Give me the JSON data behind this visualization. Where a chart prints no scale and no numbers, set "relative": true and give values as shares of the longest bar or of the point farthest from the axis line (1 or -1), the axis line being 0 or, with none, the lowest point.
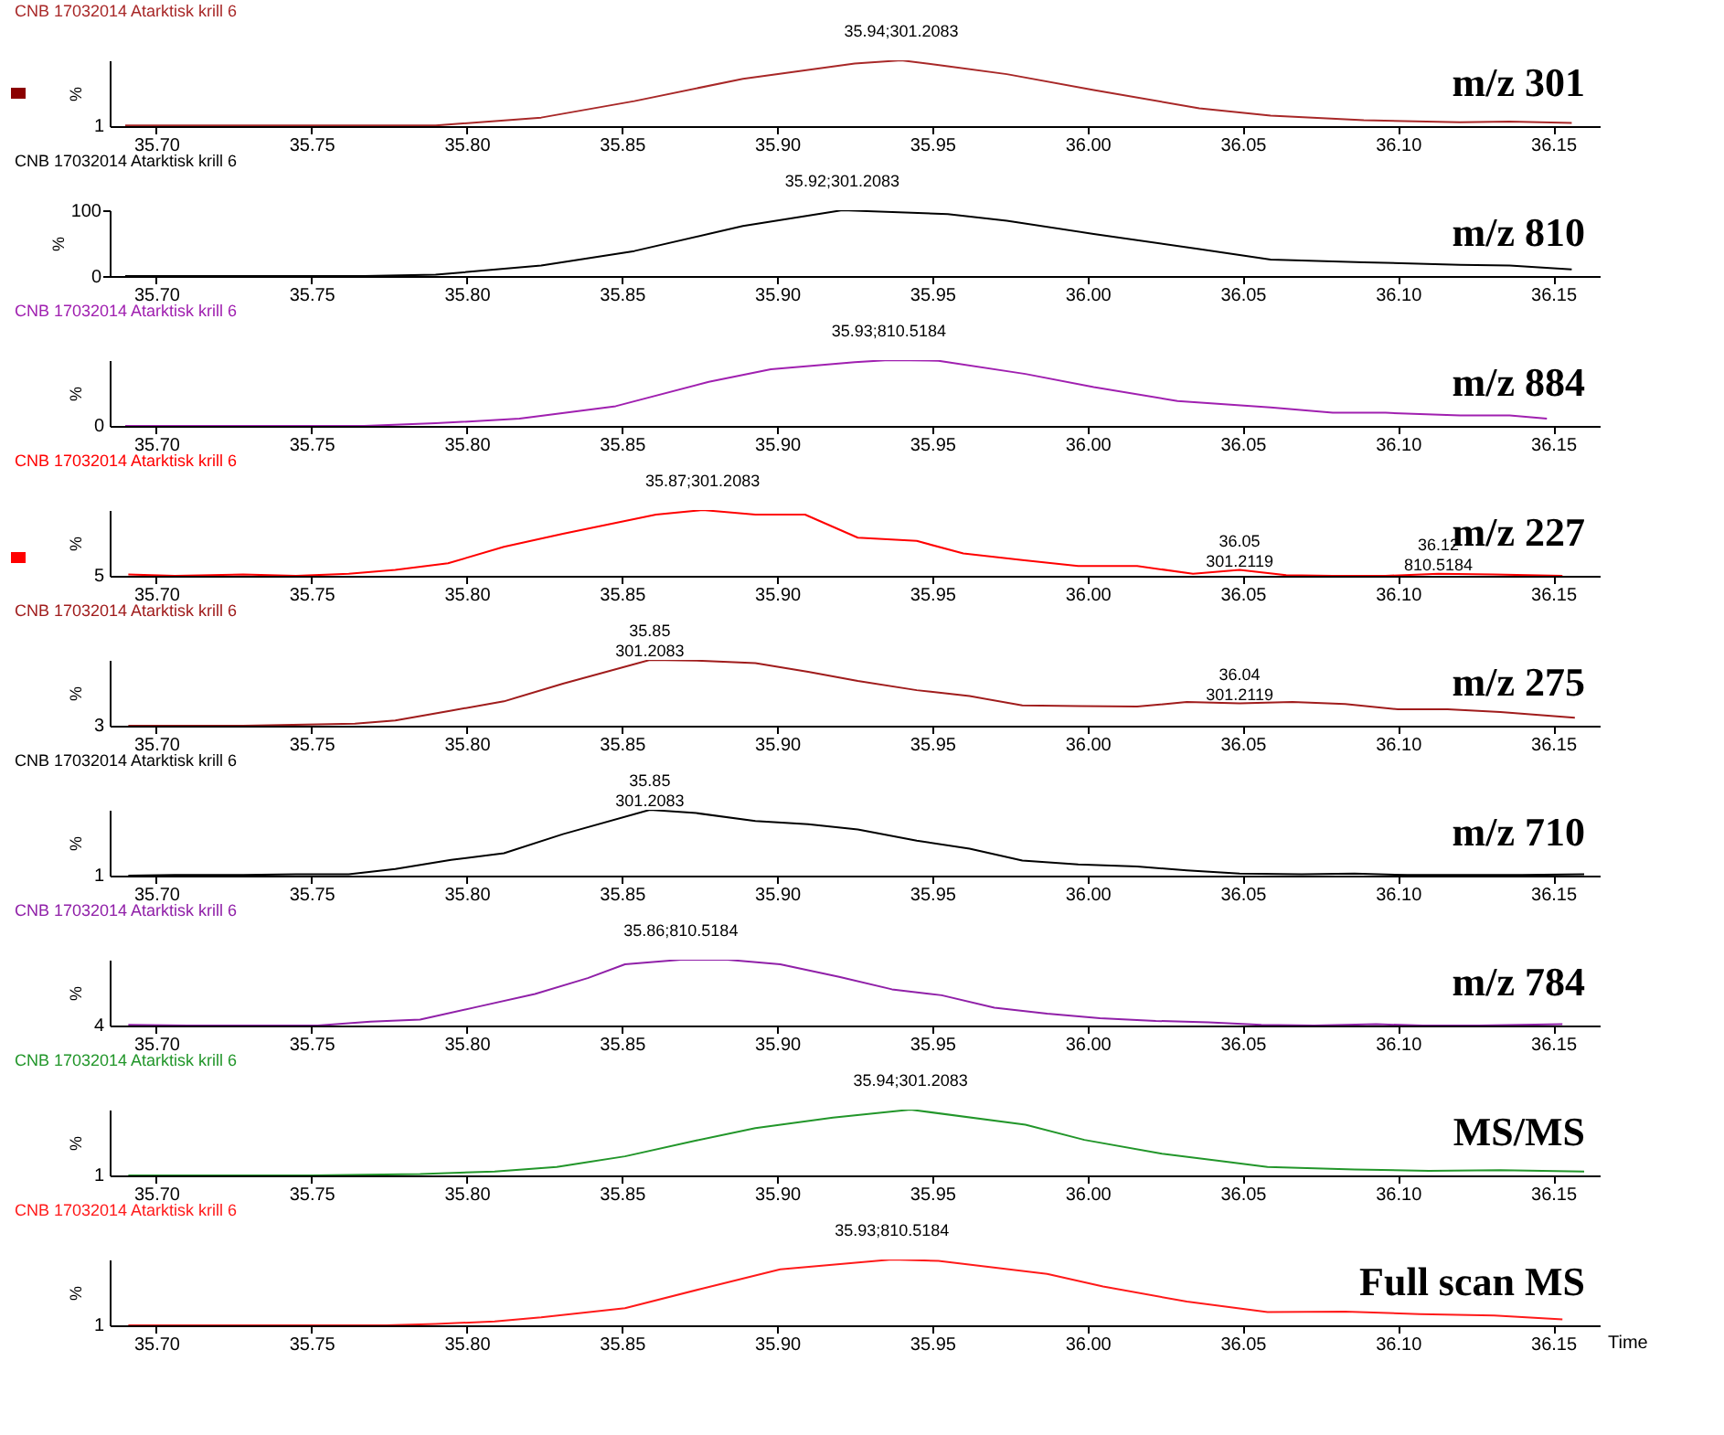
{
  "chart_data": [
    {
      "type": "line",
      "title": "CNB 17032014 Atarktisk krill 6",
      "ylabel": "%",
      "relative": true,
      "xlim": [
        35.685,
        36.165
      ],
      "xticks": [
        {
          "value": 35.7,
          "label": "35.70"
        },
        {
          "value": 35.75,
          "label": "35.75"
        },
        {
          "value": 35.8,
          "label": "35.80"
        },
        {
          "value": 35.85,
          "label": "35.85"
        },
        {
          "value": 35.9,
          "label": "35.90"
        },
        {
          "value": 35.95,
          "label": "35.95"
        },
        {
          "value": 36.0,
          "label": "36.00"
        },
        {
          "value": 36.05,
          "label": "36.05"
        },
        {
          "value": 36.1,
          "label": "36.10"
        },
        {
          "value": 36.15,
          "label": "36.15"
        }
      ],
      "x": [
        35.69,
        35.79,
        35.824,
        35.854,
        35.889,
        35.925,
        35.94,
        35.955,
        35.974,
        36.002,
        36.036,
        36.059,
        36.089,
        36.12,
        36.136,
        36.156
      ],
      "series": [
        {
          "color": "#a82828",
          "values": [
            0.01,
            0.01,
            0.13,
            0.38,
            0.72,
            0.95,
            1,
            0.91,
            0.79,
            0.55,
            0.27,
            0.16,
            0.09,
            0.06,
            0.07,
            0.05
          ]
        }
      ],
      "annotations": [
        {
          "text": "35.94;301.2083",
          "x": 35.94,
          "y": 1
        },
        "1",
        "m/z 301"
      ]
    },
    {
      "type": "line",
      "title": "CNB 17032014 Atarktisk krill 6",
      "ylabel": "%",
      "xlim": [
        35.685,
        36.165
      ],
      "xticks": [
        {
          "value": 35.7,
          "label": "35.70"
        },
        {
          "value": 35.75,
          "label": "35.75"
        },
        {
          "value": 35.8,
          "label": "35.80"
        },
        {
          "value": 35.85,
          "label": "35.85"
        },
        {
          "value": 35.9,
          "label": "35.90"
        },
        {
          "value": 35.95,
          "label": "35.95"
        },
        {
          "value": 36.0,
          "label": "36.00"
        },
        {
          "value": 36.05,
          "label": "36.05"
        },
        {
          "value": 36.1,
          "label": "36.10"
        },
        {
          "value": 36.15,
          "label": "36.15"
        }
      ],
      "ylim": [
        0,
        100
      ],
      "yticks": [
        0,
        100
      ],
      "x": [
        35.69,
        35.767,
        35.79,
        35.824,
        35.854,
        35.889,
        35.921,
        35.955,
        35.974,
        36.002,
        36.036,
        36.059,
        36.089,
        36.12,
        36.136,
        36.156
      ],
      "series": [
        {
          "color": "#000000",
          "values": [
            0,
            0,
            2,
            16,
            38,
            76,
            100,
            94,
            84,
            64,
            41,
            25,
            21,
            17,
            16,
            10
          ]
        }
      ],
      "annotations": [
        {
          "text": "35.92;301.2083",
          "x": 35.921,
          "y": 100
        },
        "m/z 810"
      ]
    },
    {
      "type": "line",
      "title": "CNB 17032014 Atarktisk krill 6",
      "ylabel": "%",
      "relative": true,
      "xlim": [
        35.685,
        36.165
      ],
      "xticks": [
        {
          "value": 35.7,
          "label": "35.70"
        },
        {
          "value": 35.75,
          "label": "35.75"
        },
        {
          "value": 35.8,
          "label": "35.80"
        },
        {
          "value": 35.85,
          "label": "35.85"
        },
        {
          "value": 35.9,
          "label": "35.90"
        },
        {
          "value": 35.95,
          "label": "35.95"
        },
        {
          "value": 36.0,
          "label": "36.00"
        },
        {
          "value": 36.05,
          "label": "36.05"
        },
        {
          "value": 36.1,
          "label": "36.10"
        },
        {
          "value": 36.15,
          "label": "36.15"
        }
      ],
      "x": [
        35.69,
        35.767,
        35.79,
        35.817,
        35.848,
        35.878,
        35.898,
        35.925,
        35.936,
        35.952,
        35.98,
        36.002,
        36.029,
        36.059,
        36.079,
        36.096,
        36.12,
        36.136,
        36.148
      ],
      "series": [
        {
          "color": "#a020b0",
          "values": [
            0,
            0,
            0.04,
            0.11,
            0.3,
            0.67,
            0.86,
            0.97,
            1,
            0.99,
            0.79,
            0.59,
            0.38,
            0.28,
            0.2,
            0.2,
            0.16,
            0.16,
            0.11
          ]
        }
      ],
      "annotations": [
        {
          "text": "35.93;810.5184",
          "x": 35.936,
          "y": 1
        },
        "0",
        "m/z 884"
      ]
    },
    {
      "type": "line",
      "title": "CNB 17032014 Atarktisk krill 6",
      "ylabel": "%",
      "relative": true,
      "xlim": [
        35.685,
        36.165
      ],
      "xticks": [
        {
          "value": 35.7,
          "label": "35.70"
        },
        {
          "value": 35.75,
          "label": "35.75"
        },
        {
          "value": 35.8,
          "label": "35.80"
        },
        {
          "value": 35.85,
          "label": "35.85"
        },
        {
          "value": 35.9,
          "label": "35.90"
        },
        {
          "value": 35.95,
          "label": "35.95"
        },
        {
          "value": 36.0,
          "label": "36.00"
        },
        {
          "value": 36.05,
          "label": "36.05"
        },
        {
          "value": 36.1,
          "label": "36.10"
        },
        {
          "value": 36.15,
          "label": "36.15"
        }
      ],
      "x": [
        35.691,
        35.706,
        35.728,
        35.745,
        35.762,
        35.777,
        35.794,
        35.812,
        35.831,
        35.861,
        35.876,
        35.893,
        35.909,
        35.926,
        35.945,
        35.96,
        35.979,
        35.997,
        36.016,
        36.034,
        36.049,
        36.064,
        36.079,
        36.096,
        36.113,
        36.131,
        36.153
      ],
      "series": [
        {
          "color": "#ff0000",
          "values": [
            0.02,
            0,
            0.02,
            0,
            0.03,
            0.09,
            0.19,
            0.44,
            0.64,
            0.93,
            1,
            0.93,
            0.93,
            0.58,
            0.53,
            0.34,
            0.24,
            0.15,
            0.15,
            0.03,
            0.09,
            0.01,
            0,
            0,
            0.03,
            0.02,
            0
          ]
        }
      ],
      "annotations": [
        {
          "text": "35.87;301.2083",
          "x": 35.876,
          "y": 1
        },
        {
          "text": "36.05\n301.2119",
          "x": 36.049,
          "y": 0.09
        },
        {
          "text": "36.12\n810.5184",
          "x": 36.113,
          "y": 0.03
        },
        "5",
        "m/z 227"
      ]
    },
    {
      "type": "line",
      "title": "CNB 17032014 Atarktisk krill 6",
      "ylabel": "%",
      "relative": true,
      "xlim": [
        35.685,
        36.165
      ],
      "xticks": [
        {
          "value": 35.7,
          "label": "35.70"
        },
        {
          "value": 35.75,
          "label": "35.75"
        },
        {
          "value": 35.8,
          "label": "35.80"
        },
        {
          "value": 35.85,
          "label": "35.85"
        },
        {
          "value": 35.9,
          "label": "35.90"
        },
        {
          "value": 35.95,
          "label": "35.95"
        },
        {
          "value": 36.0,
          "label": "36.00"
        },
        {
          "value": 36.05,
          "label": "36.05"
        },
        {
          "value": 36.1,
          "label": "36.10"
        },
        {
          "value": 36.15,
          "label": "36.15"
        }
      ],
      "x": [
        35.691,
        35.728,
        35.764,
        35.777,
        35.795,
        35.812,
        35.831,
        35.859,
        35.874,
        35.893,
        35.91,
        35.926,
        35.945,
        35.962,
        35.979,
        35.997,
        36.016,
        36.032,
        36.049,
        36.066,
        36.083,
        36.1,
        36.116,
        36.133,
        36.157
      ],
      "series": [
        {
          "color": "#a01c1c",
          "values": [
            0,
            0,
            0.03,
            0.08,
            0.23,
            0.37,
            0.64,
            1,
            0.99,
            0.95,
            0.82,
            0.68,
            0.54,
            0.45,
            0.31,
            0.3,
            0.29,
            0.36,
            0.34,
            0.36,
            0.33,
            0.25,
            0.25,
            0.21,
            0.12
          ]
        }
      ],
      "annotations": [
        {
          "text": "35.85\n301.2083",
          "x": 35.859,
          "y": 1
        },
        {
          "text": "36.04\n301.2119",
          "x": 36.049,
          "y": 0.34
        },
        "3",
        "m/z 275"
      ]
    },
    {
      "type": "line",
      "title": "CNB 17032014 Atarktisk krill 6",
      "ylabel": "%",
      "relative": true,
      "xlim": [
        35.685,
        36.165
      ],
      "xticks": [
        {
          "value": 35.7,
          "label": "35.70"
        },
        {
          "value": 35.75,
          "label": "35.75"
        },
        {
          "value": 35.8,
          "label": "35.80"
        },
        {
          "value": 35.85,
          "label": "35.85"
        },
        {
          "value": 35.9,
          "label": "35.90"
        },
        {
          "value": 35.95,
          "label": "35.95"
        },
        {
          "value": 36.0,
          "label": "36.00"
        },
        {
          "value": 36.05,
          "label": "36.05"
        },
        {
          "value": 36.1,
          "label": "36.10"
        },
        {
          "value": 36.15,
          "label": "36.15"
        }
      ],
      "x": [
        35.691,
        35.706,
        35.728,
        35.745,
        35.762,
        35.777,
        35.795,
        35.812,
        35.831,
        35.859,
        35.874,
        35.893,
        35.91,
        35.926,
        35.945,
        35.962,
        35.979,
        35.997,
        36.016,
        36.032,
        36.049,
        36.069,
        36.086,
        36.103,
        36.12,
        36.14,
        36.16
      ],
      "series": [
        {
          "color": "#000000",
          "values": [
            0,
            0.01,
            0.01,
            0.02,
            0.02,
            0.1,
            0.24,
            0.34,
            0.63,
            1,
            0.95,
            0.83,
            0.78,
            0.7,
            0.53,
            0.41,
            0.23,
            0.17,
            0.14,
            0.08,
            0.03,
            0.02,
            0.03,
            0.01,
            0.01,
            0.01,
            0.02
          ]
        }
      ],
      "annotations": [
        {
          "text": "35.85\n301.2083",
          "x": 35.859,
          "y": 1
        },
        "1",
        "m/z 710"
      ]
    },
    {
      "type": "line",
      "title": "CNB 17032014 Atarktisk krill 6",
      "ylabel": "%",
      "relative": true,
      "xlim": [
        35.685,
        36.165
      ],
      "xticks": [
        {
          "value": 35.7,
          "label": "35.70"
        },
        {
          "value": 35.75,
          "label": "35.75"
        },
        {
          "value": 35.8,
          "label": "35.80"
        },
        {
          "value": 35.85,
          "label": "35.85"
        },
        {
          "value": 35.9,
          "label": "35.90"
        },
        {
          "value": 35.95,
          "label": "35.95"
        },
        {
          "value": 36.0,
          "label": "36.00"
        },
        {
          "value": 36.05,
          "label": "36.05"
        },
        {
          "value": 36.1,
          "label": "36.10"
        },
        {
          "value": 36.15,
          "label": "36.15"
        }
      ],
      "x": [
        35.691,
        35.71,
        35.733,
        35.752,
        35.769,
        35.785,
        35.804,
        35.822,
        35.839,
        35.851,
        35.869,
        35.884,
        35.901,
        35.92,
        35.937,
        35.953,
        35.97,
        35.987,
        36.004,
        36.022,
        36.039,
        36.056,
        36.073,
        36.093,
        36.108,
        36.126,
        36.153
      ],
      "series": [
        {
          "color": "#9020a8",
          "values": [
            0.01,
            0,
            0,
            0,
            0.06,
            0.09,
            0.29,
            0.48,
            0.72,
            0.93,
            1,
            1,
            0.93,
            0.74,
            0.55,
            0.46,
            0.27,
            0.18,
            0.11,
            0.07,
            0.05,
            0.01,
            0,
            0.02,
            0,
            0,
            0.02
          ]
        }
      ],
      "annotations": [
        {
          "text": "35.86;810.5184",
          "x": 35.869,
          "y": 1
        },
        "4",
        "m/z 784"
      ]
    },
    {
      "type": "line",
      "title": "CNB 17032014 Atarktisk krill 6",
      "ylabel": "%",
      "relative": true,
      "xlim": [
        35.685,
        36.165
      ],
      "xticks": [
        {
          "value": 35.7,
          "label": "35.70"
        },
        {
          "value": 35.75,
          "label": "35.75"
        },
        {
          "value": 35.8,
          "label": "35.80"
        },
        {
          "value": 35.85,
          "label": "35.85"
        },
        {
          "value": 35.9,
          "label": "35.90"
        },
        {
          "value": 35.95,
          "label": "35.95"
        },
        {
          "value": 36.0,
          "label": "36.00"
        },
        {
          "value": 36.05,
          "label": "36.05"
        },
        {
          "value": 36.1,
          "label": "36.10"
        },
        {
          "value": 36.15,
          "label": "36.15"
        }
      ],
      "x": [
        35.691,
        35.723,
        35.75,
        35.767,
        35.785,
        35.809,
        35.829,
        35.851,
        35.874,
        35.893,
        35.918,
        35.943,
        35.98,
        35.999,
        36.024,
        36.058,
        36.086,
        36.11,
        36.133,
        36.16
      ],
      "series": [
        {
          "color": "#22962a",
          "values": [
            0,
            0,
            0,
            0.01,
            0.02,
            0.06,
            0.13,
            0.29,
            0.53,
            0.72,
            0.88,
            1,
            0.77,
            0.54,
            0.33,
            0.13,
            0.09,
            0.07,
            0.08,
            0.06
          ]
        }
      ],
      "annotations": [
        {
          "text": "35.94;301.2083",
          "x": 35.943,
          "y": 1
        },
        "1",
        "MS/MS"
      ]
    },
    {
      "type": "line",
      "title": "CNB 17032014 Atarktisk krill 6",
      "ylabel": "%",
      "relative": true,
      "xlabel": "Time",
      "xlim": [
        35.685,
        36.165
      ],
      "xticks": [
        {
          "value": 35.7,
          "label": "35.70"
        },
        {
          "value": 35.75,
          "label": "35.75"
        },
        {
          "value": 35.8,
          "label": "35.80"
        },
        {
          "value": 35.85,
          "label": "35.85"
        },
        {
          "value": 35.9,
          "label": "35.90"
        },
        {
          "value": 35.95,
          "label": "35.95"
        },
        {
          "value": 36.0,
          "label": "36.00"
        },
        {
          "value": 36.05,
          "label": "36.05"
        },
        {
          "value": 36.1,
          "label": "36.10"
        },
        {
          "value": 36.15,
          "label": "36.15"
        }
      ],
      "x": [
        35.691,
        35.774,
        35.79,
        35.809,
        35.824,
        35.851,
        35.876,
        35.901,
        35.937,
        35.952,
        35.987,
        36.005,
        36.032,
        36.058,
        36.083,
        36.107,
        36.131,
        36.153
      ],
      "series": [
        {
          "color": "#ff1a1a",
          "values": [
            0,
            0,
            0.02,
            0.06,
            0.12,
            0.26,
            0.56,
            0.85,
            1,
            0.98,
            0.78,
            0.59,
            0.36,
            0.2,
            0.21,
            0.17,
            0.15,
            0.09
          ]
        }
      ],
      "annotations": [
        {
          "text": "35.93;810.5184",
          "x": 35.937,
          "y": 1
        },
        "1",
        "Full scan MS"
      ]
    }
  ]
}
